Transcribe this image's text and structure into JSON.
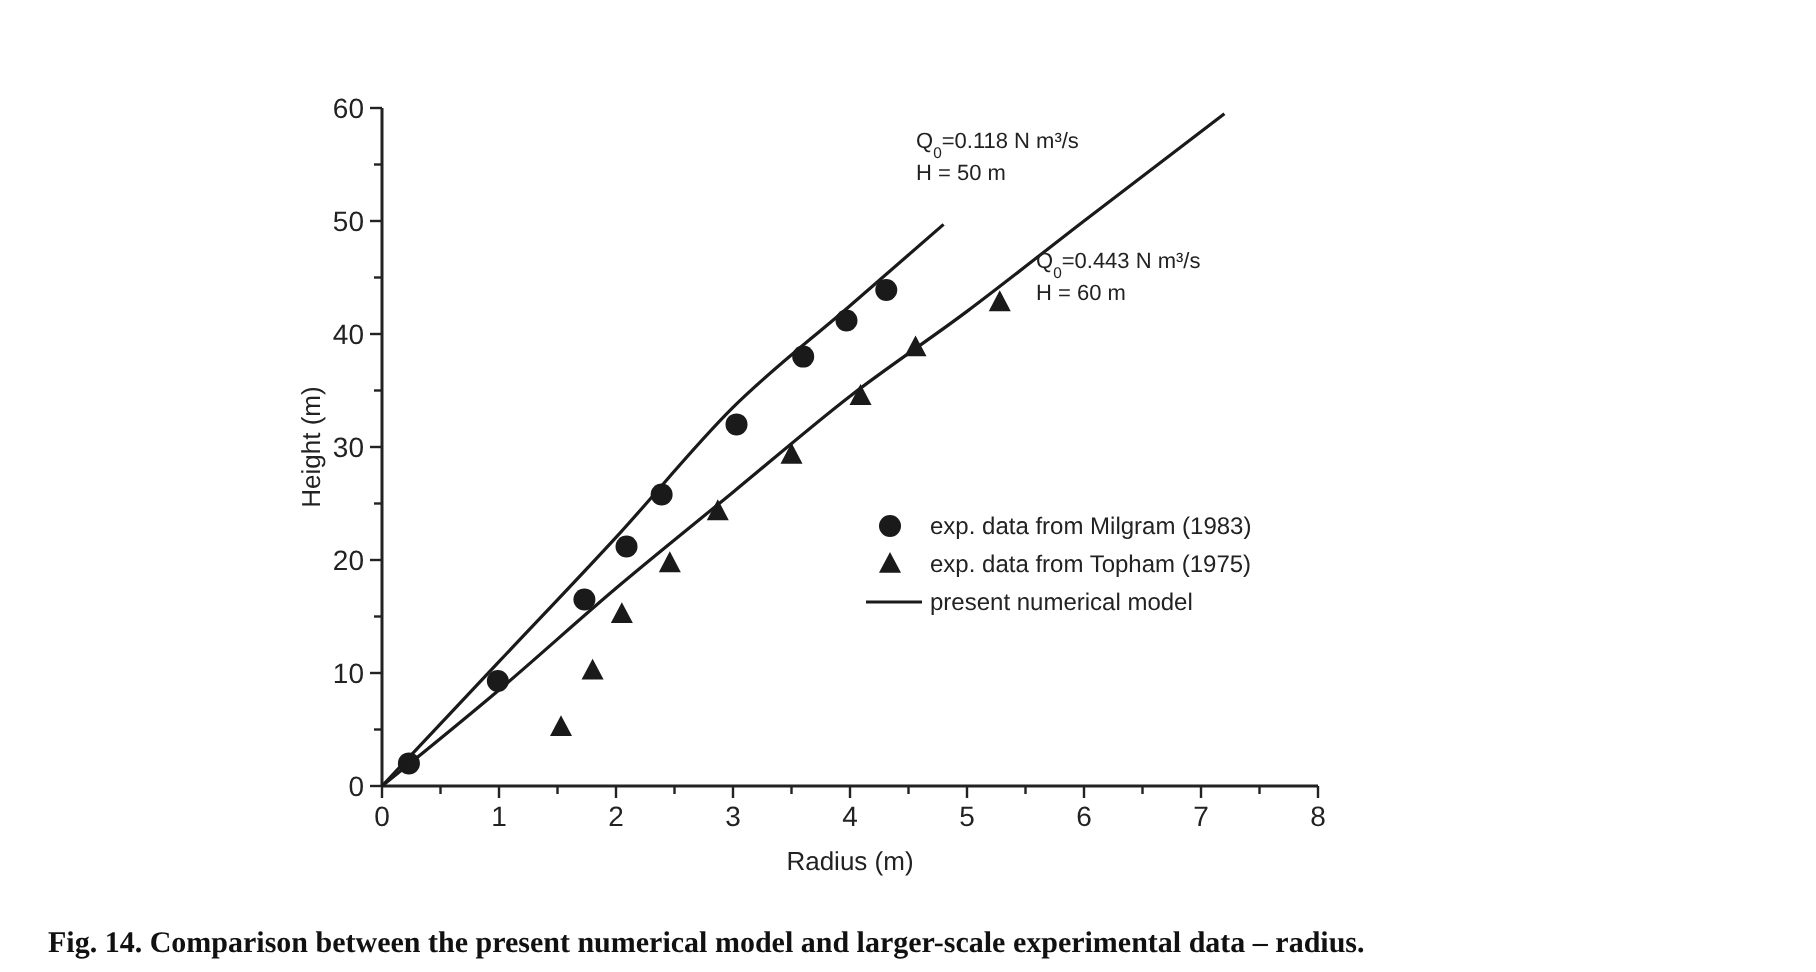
{
  "chart_data": {
    "type": "scatter",
    "xlabel": "Radius (m)",
    "ylabel": "Height (m)",
    "xlim": [
      0,
      8
    ],
    "ylim": [
      0,
      60
    ],
    "xticks": [
      0,
      {
        "value": 0.5,
        "label": null
      },
      1,
      {
        "value": 1.5,
        "label": null
      },
      2,
      {
        "value": 2.5,
        "label": null
      },
      3,
      {
        "value": 3.5,
        "label": null
      },
      4,
      {
        "value": 4.5,
        "label": null
      },
      5,
      {
        "value": 5.5,
        "label": null
      },
      6,
      {
        "value": 6.5,
        "label": null
      },
      7,
      {
        "value": 7.5,
        "label": null
      },
      8
    ],
    "yticks": [
      0,
      {
        "value": 5,
        "label": null
      },
      10,
      {
        "value": 15,
        "label": null
      },
      20,
      {
        "value": 25,
        "label": null
      },
      30,
      {
        "value": 35,
        "label": null
      },
      40,
      {
        "value": 45,
        "label": null
      },
      50,
      {
        "value": 55,
        "label": null
      },
      60
    ],
    "grid": false,
    "legend": "bottom right",
    "series": [
      {
        "name": "exp. data from Milgram (1983)",
        "marker": "circle",
        "color": "#1a1a1a",
        "x": [
          0.23,
          0.99,
          1.73,
          2.09,
          2.39,
          3.03,
          3.6,
          3.97,
          4.31
        ],
        "values": [
          2,
          9.3,
          16.5,
          21.2,
          25.8,
          32,
          38,
          41.2,
          43.9
        ]
      },
      {
        "name": "exp. data from Topham (1975)",
        "marker": "triangle",
        "color": "#1a1a1a",
        "x": [
          1.53,
          1.8,
          2.05,
          2.46,
          2.87,
          3.5,
          4.09,
          4.56,
          5.28
        ],
        "values": [
          5.2,
          10.2,
          15.2,
          19.7,
          24.3,
          29.3,
          34.5,
          38.8,
          42.8
        ]
      },
      {
        "name": "present numerical model",
        "type": "line",
        "marker": "none",
        "line_style": "solid",
        "color": "#1a1a1a",
        "x": [
          0,
          1,
          2,
          3,
          4,
          4.8
        ],
        "values": [
          0,
          11,
          22,
          33.5,
          42.5,
          49.7
        ]
      },
      {
        "type": "line",
        "marker": "none",
        "line_style": "solid",
        "color": "#1a1a1a",
        "x": [
          0,
          1,
          2,
          3,
          4,
          5,
          6,
          7.2
        ],
        "values": [
          0,
          8.5,
          17.5,
          26,
          34.5,
          42,
          50,
          59.5
        ]
      }
    ],
    "annotations": [
      "Q$_{0}$=0.118 N m³/s\nH = 50 m",
      "Q$_{0}$=0.443 N m³/s\nH = 60 m",
      "Fig. 14.  Comparison between the present numerical model and larger-scale experimental data – radius."
    ]
  }
}
